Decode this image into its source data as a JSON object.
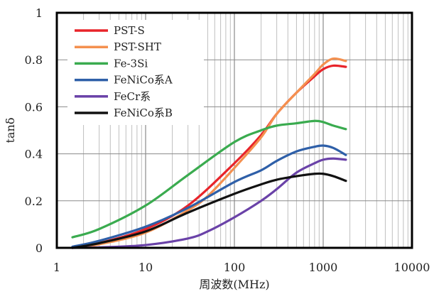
{
  "chart_data": {
    "type": "line",
    "title": "",
    "xlabel": "周波数(MHz)",
    "ylabel": "tanδ",
    "xscale": "log",
    "xlim": [
      1,
      10000
    ],
    "ylim": [
      0,
      1
    ],
    "x_ticks": [
      "1",
      "10",
      "100",
      "1000",
      "10000"
    ],
    "y_ticks": [
      "0",
      "0.2",
      "0.4",
      "0.6",
      "0.8",
      "1"
    ],
    "grid": "vertical minor log gridlines, horizontal gridlines at 0.2 steps",
    "legend_position": "top-left",
    "series": [
      {
        "name": "PST-S",
        "color": "#e8242a",
        "x": [
          1.5,
          3,
          10,
          30,
          100,
          200,
          300,
          500,
          800,
          1000,
          1300,
          1800
        ],
        "y": [
          0.0,
          0.02,
          0.08,
          0.18,
          0.36,
          0.48,
          0.57,
          0.66,
          0.73,
          0.76,
          0.775,
          0.77
        ]
      },
      {
        "name": "PST-SHT",
        "color": "#f4904f",
        "x": [
          1.5,
          3,
          10,
          30,
          50,
          100,
          200,
          300,
          500,
          800,
          1000,
          1300,
          1800
        ],
        "y": [
          0.0,
          0.015,
          0.065,
          0.16,
          0.22,
          0.34,
          0.47,
          0.57,
          0.66,
          0.74,
          0.78,
          0.805,
          0.795
        ]
      },
      {
        "name": "Fe-3Si",
        "color": "#3aab4f",
        "x": [
          1.5,
          3,
          10,
          30,
          100,
          200,
          300,
          500,
          800,
          1000,
          1300,
          1800
        ],
        "y": [
          0.045,
          0.08,
          0.18,
          0.31,
          0.45,
          0.5,
          0.52,
          0.53,
          0.54,
          0.535,
          0.52,
          0.505
        ]
      },
      {
        "name": "FeNiCo系A",
        "color": "#2e5fa8",
        "x": [
          1.5,
          3,
          10,
          30,
          100,
          200,
          300,
          500,
          800,
          1000,
          1300,
          1800
        ],
        "y": [
          0.005,
          0.03,
          0.09,
          0.17,
          0.28,
          0.33,
          0.37,
          0.41,
          0.43,
          0.435,
          0.425,
          0.395
        ]
      },
      {
        "name": "FeCr系",
        "color": "#6a42a8",
        "x": [
          1.5,
          3,
          10,
          30,
          50,
          100,
          200,
          300,
          500,
          800,
          1000,
          1300,
          1800
        ],
        "y": [
          0.0,
          0.002,
          0.012,
          0.04,
          0.07,
          0.13,
          0.2,
          0.25,
          0.32,
          0.36,
          0.375,
          0.38,
          0.375
        ]
      },
      {
        "name": "FeNiCo系B",
        "color": "#111111",
        "x": [
          1.5,
          3,
          10,
          30,
          100,
          200,
          300,
          500,
          800,
          1000,
          1300,
          1800
        ],
        "y": [
          0.0,
          0.02,
          0.07,
          0.15,
          0.23,
          0.27,
          0.29,
          0.305,
          0.315,
          0.315,
          0.305,
          0.285
        ]
      }
    ]
  }
}
